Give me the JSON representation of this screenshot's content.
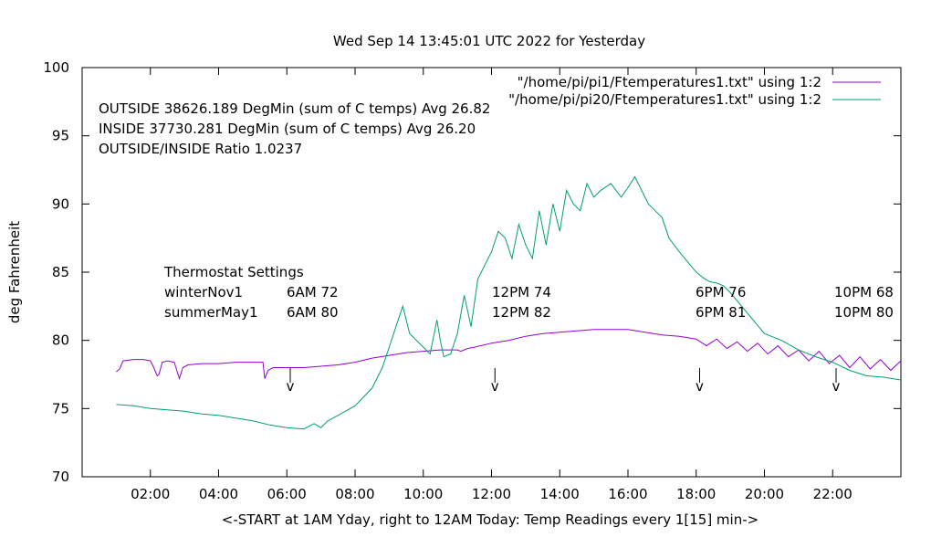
{
  "chart_data": {
    "type": "line",
    "title": "Wed Sep 14 13:45:01 UTC 2022 for Yesterday",
    "xlabel": "<-START at 1AM Yday, right to 12AM Today:  Temp Readings every 1[15] min->",
    "ylabel": "deg Fahrenheit",
    "xlim": [
      0,
      24
    ],
    "ylim": [
      70,
      100
    ],
    "yticks": [
      70,
      75,
      80,
      85,
      90,
      95,
      100
    ],
    "xticks": [
      {
        "x": 2,
        "label": "02:00"
      },
      {
        "x": 4,
        "label": "04:00"
      },
      {
        "x": 6,
        "label": "06:00"
      },
      {
        "x": 8,
        "label": "08:00"
      },
      {
        "x": 10,
        "label": "10:00"
      },
      {
        "x": 12,
        "label": "12:00"
      },
      {
        "x": 14,
        "label": "14:00"
      },
      {
        "x": 16,
        "label": "16:00"
      },
      {
        "x": 18,
        "label": "18:00"
      },
      {
        "x": 20,
        "label": "20:00"
      },
      {
        "x": 22,
        "label": "22:00"
      }
    ],
    "legend_position": "top-right",
    "series": [
      {
        "name": "\"/home/pi/pi1/Ftemperatures1.txt\" using 1:2",
        "color": "#9400d3",
        "x": [
          1.0,
          1.1,
          1.2,
          1.5,
          1.8,
          2.0,
          2.1,
          2.2,
          2.25,
          2.35,
          2.5,
          2.7,
          2.8,
          2.85,
          2.95,
          3.1,
          3.5,
          4.0,
          4.5,
          5.0,
          5.3,
          5.35,
          5.45,
          5.6,
          6.0,
          6.5,
          7.0,
          7.5,
          8.0,
          8.5,
          9.0,
          9.5,
          10.0,
          10.5,
          11.0,
          11.1,
          11.3,
          11.5,
          12.0,
          12.5,
          13.0,
          13.5,
          14.0,
          14.5,
          15.0,
          15.5,
          16.0,
          16.5,
          17.0,
          17.5,
          18.0,
          18.3,
          18.6,
          18.9,
          19.2,
          19.5,
          19.8,
          20.1,
          20.4,
          20.7,
          21.0,
          21.3,
          21.6,
          21.9,
          22.2,
          22.5,
          22.8,
          23.1,
          23.4,
          23.7,
          24.0
        ],
        "y": [
          77.7,
          77.9,
          78.5,
          78.6,
          78.6,
          78.5,
          78.0,
          77.4,
          77.5,
          78.4,
          78.5,
          78.4,
          77.6,
          77.2,
          78.0,
          78.2,
          78.3,
          78.3,
          78.4,
          78.4,
          78.4,
          77.2,
          77.8,
          78.0,
          78.0,
          78.0,
          78.1,
          78.2,
          78.4,
          78.7,
          78.9,
          79.1,
          79.2,
          79.3,
          79.3,
          79.2,
          79.4,
          79.5,
          79.8,
          80.0,
          80.3,
          80.5,
          80.6,
          80.7,
          80.8,
          80.8,
          80.8,
          80.6,
          80.4,
          80.3,
          80.1,
          79.6,
          80.1,
          79.4,
          79.9,
          79.2,
          79.8,
          79.0,
          79.6,
          78.8,
          79.3,
          78.5,
          79.2,
          78.3,
          78.9,
          78.0,
          78.8,
          77.9,
          78.6,
          77.8,
          78.5
        ]
      },
      {
        "name": "\"/home/pi/pi20/Ftemperatures1.txt\" using 1:2",
        "color": "#009e73",
        "x": [
          1.0,
          1.5,
          2.0,
          2.5,
          3.0,
          3.5,
          4.0,
          4.5,
          5.0,
          5.5,
          6.0,
          6.5,
          6.8,
          7.0,
          7.2,
          7.5,
          8.0,
          8.5,
          8.8,
          9.0,
          9.2,
          9.4,
          9.6,
          9.8,
          10.0,
          10.2,
          10.4,
          10.5,
          10.6,
          10.8,
          11.0,
          11.2,
          11.4,
          11.6,
          11.8,
          12.0,
          12.2,
          12.4,
          12.6,
          12.8,
          13.0,
          13.2,
          13.4,
          13.6,
          13.8,
          14.0,
          14.2,
          14.4,
          14.6,
          14.8,
          15.0,
          15.2,
          15.5,
          15.8,
          16.0,
          16.2,
          16.4,
          16.6,
          16.8,
          17.0,
          17.2,
          17.5,
          18.0,
          18.2,
          18.4,
          18.6,
          18.8,
          19.0,
          19.5,
          20.0,
          20.5,
          21.0,
          21.5,
          22.0,
          22.5,
          23.0,
          23.5,
          24.0
        ],
        "y": [
          75.3,
          75.2,
          75.0,
          74.9,
          74.8,
          74.6,
          74.5,
          74.3,
          74.1,
          73.8,
          73.6,
          73.5,
          73.9,
          73.6,
          74.1,
          74.5,
          75.2,
          76.5,
          78.0,
          79.5,
          81.0,
          82.5,
          80.5,
          80.0,
          79.5,
          79.0,
          81.5,
          80.0,
          78.8,
          79.0,
          80.5,
          83.3,
          81.0,
          84.5,
          85.5,
          86.5,
          88.0,
          87.5,
          86.0,
          88.5,
          87.0,
          86.0,
          89.5,
          87.0,
          90.0,
          88.0,
          91.0,
          90.0,
          89.5,
          91.5,
          90.5,
          91.0,
          91.5,
          90.5,
          91.2,
          92.0,
          91.0,
          90.0,
          89.5,
          89.0,
          87.5,
          86.5,
          85.0,
          84.6,
          84.3,
          84.2,
          84.0,
          83.5,
          82.0,
          80.5,
          80.0,
          79.3,
          78.8,
          78.4,
          77.8,
          77.4,
          77.3,
          77.1
        ]
      }
    ],
    "annotations": {
      "stats": [
        "OUTSIDE 38626.189 DegMin (sum of C temps) Avg 26.82",
        "INSIDE 37730.281 DegMin (sum of C temps) Avg 26.20",
        "OUTSIDE/INSIDE Ratio 1.0237"
      ],
      "thermostat_title": "Thermostat Settings",
      "winter_label": "winterNov1",
      "summer_label": "summerMay1",
      "settings": [
        {
          "x": 6.0,
          "winter": "6AM 72",
          "summer": "6AM 80"
        },
        {
          "x": 12.0,
          "winter": "12PM 74",
          "summer": "12PM 82"
        },
        {
          "x": 18.0,
          "winter": "6PM 76",
          "summer": "6PM 81"
        },
        {
          "x": 22.0,
          "winter": "10PM 68",
          "summer": "10PM 80"
        }
      ],
      "markers": [
        {
          "x": 6.1,
          "label": "v"
        },
        {
          "x": 12.1,
          "label": "v"
        },
        {
          "x": 18.1,
          "label": "v"
        },
        {
          "x": 22.1,
          "label": "v"
        }
      ]
    }
  }
}
